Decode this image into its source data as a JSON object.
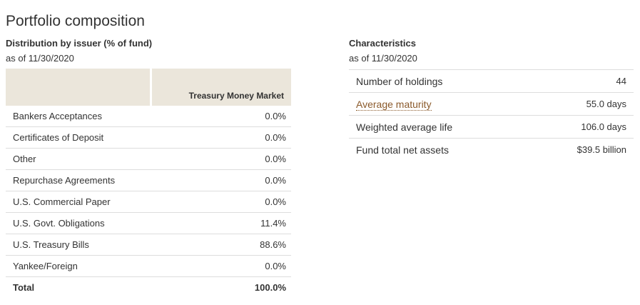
{
  "page": {
    "title": "Portfolio composition"
  },
  "distribution": {
    "heading": "Distribution by issuer (% of fund)",
    "as_of": "as of 11/30/2020",
    "column_header": "Treasury Money Market",
    "rows": [
      {
        "label": "Bankers Acceptances",
        "value": "0.0%"
      },
      {
        "label": "Certificates of Deposit",
        "value": "0.0%"
      },
      {
        "label": "Other",
        "value": "0.0%"
      },
      {
        "label": "Repurchase Agreements",
        "value": "0.0%"
      },
      {
        "label": "U.S. Commercial Paper",
        "value": "0.0%"
      },
      {
        "label": "U.S. Govt. Obligations",
        "value": "11.4%"
      },
      {
        "label": "U.S. Treasury Bills",
        "value": "88.6%"
      },
      {
        "label": "Yankee/Foreign",
        "value": "0.0%"
      }
    ],
    "total": {
      "label": "Total",
      "value": "100.0%"
    }
  },
  "characteristics": {
    "heading": "Characteristics",
    "as_of": "as of 11/30/2020",
    "rows": [
      {
        "label": "Number of holdings",
        "value": "44"
      },
      {
        "label": "Average maturity",
        "value": "55.0 days"
      },
      {
        "label": "Weighted average life",
        "value": "106.0 days"
      },
      {
        "label": "Fund total net assets",
        "value": "$39.5 billion"
      }
    ]
  },
  "colors": {
    "header_bg": "#ebe6db",
    "link": "#8b5a2b",
    "text": "#333333",
    "divider": "#dddddd"
  }
}
